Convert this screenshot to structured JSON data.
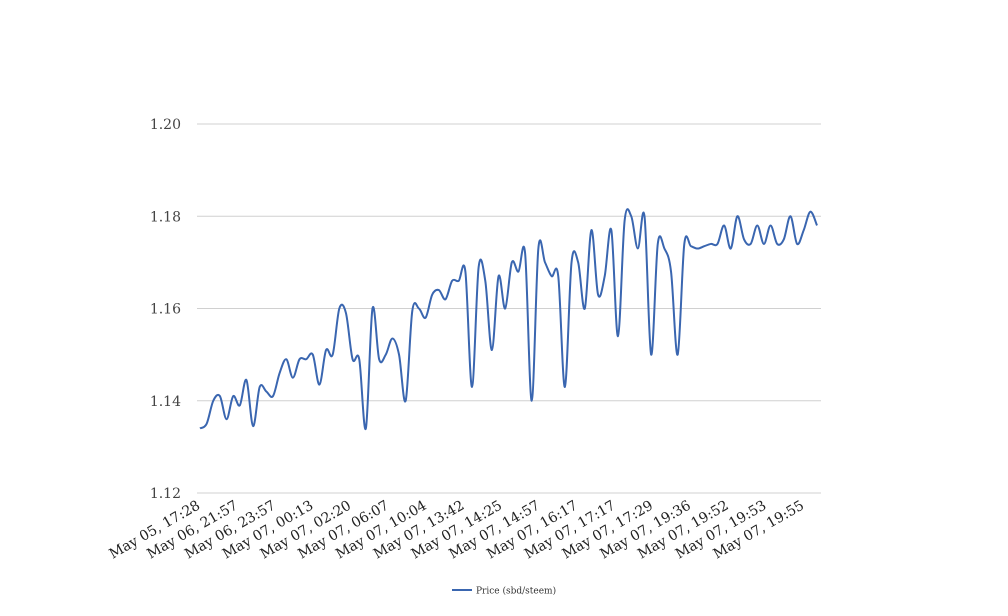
{
  "chart_data": {
    "type": "line",
    "title": "",
    "xlabel": "",
    "ylabel": "",
    "ylim": [
      1.12,
      1.2
    ],
    "y_ticks": [
      "1.12",
      "1.14",
      "1.16",
      "1.18",
      "1.20"
    ],
    "x_tick_labels": [
      "May 05, 17:28",
      "May 06, 21:57",
      "May 06, 23:57",
      "May 07, 00:13",
      "May 07, 02:20",
      "May 07, 06:07",
      "May 07, 10:04",
      "May 07, 13:42",
      "May 07, 14:25",
      "May 07, 14:57",
      "May 07, 16:17",
      "May 07, 17:17",
      "May 07, 17:29",
      "May 07, 19:36",
      "May 07, 19:52",
      "May 07, 19:53",
      "May 07, 19:55"
    ],
    "grid": true,
    "legend_position": "bottom",
    "series": [
      {
        "name": "Price (sbd/steem)",
        "color": "#3a66b0",
        "values": [
          1.134,
          1.135,
          1.14,
          1.141,
          1.136,
          1.141,
          1.139,
          1.1445,
          1.1345,
          1.143,
          1.142,
          1.141,
          1.146,
          1.149,
          1.145,
          1.149,
          1.149,
          1.15,
          1.1435,
          1.151,
          1.15,
          1.16,
          1.159,
          1.149,
          1.149,
          1.134,
          1.16,
          1.149,
          1.15,
          1.1535,
          1.15,
          1.14,
          1.1595,
          1.16,
          1.158,
          1.163,
          1.164,
          1.162,
          1.166,
          1.166,
          1.168,
          1.143,
          1.169,
          1.166,
          1.151,
          1.167,
          1.16,
          1.17,
          1.168,
          1.172,
          1.14,
          1.173,
          1.17,
          1.167,
          1.167,
          1.143,
          1.17,
          1.17,
          1.16,
          1.177,
          1.163,
          1.167,
          1.177,
          1.154,
          1.179,
          1.18,
          1.173,
          1.18,
          1.15,
          1.174,
          1.173,
          1.168,
          1.15,
          1.174,
          1.1735,
          1.173,
          1.1735,
          1.174,
          1.174,
          1.178,
          1.173,
          1.18,
          1.175,
          1.174,
          1.178,
          1.174,
          1.178,
          1.174,
          1.175,
          1.18,
          1.174,
          1.177,
          1.181,
          1.178
        ]
      }
    ]
  }
}
